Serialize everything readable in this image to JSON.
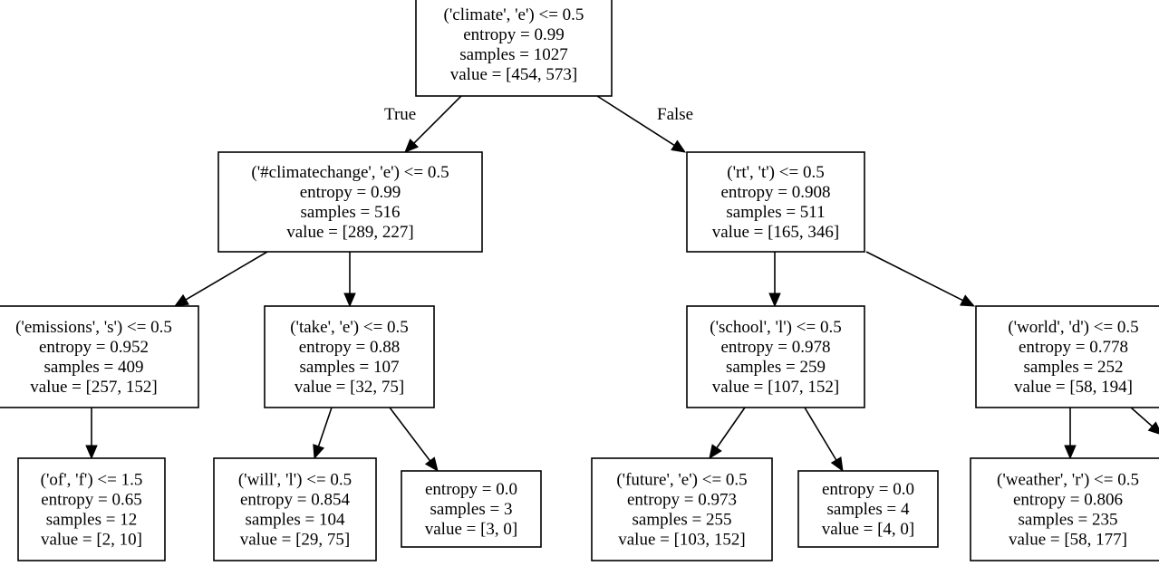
{
  "tree": {
    "nodes": [
      {
        "id": "n0",
        "lines": [
          "('climate', 'e') <= 0.5",
          "entropy = 0.99",
          "samples = 1027",
          "value = [454, 573]"
        ]
      },
      {
        "id": "n1",
        "lines": [
          "('#climatechange', 'e') <= 0.5",
          "entropy = 0.99",
          "samples = 516",
          "value = [289, 227]"
        ]
      },
      {
        "id": "n2",
        "lines": [
          "('rt', 't') <= 0.5",
          "entropy = 0.908",
          "samples = 511",
          "value = [165, 346]"
        ]
      },
      {
        "id": "n3",
        "lines": [
          "('emissions', 's') <= 0.5",
          "entropy = 0.952",
          "samples = 409",
          "value = [257, 152]"
        ]
      },
      {
        "id": "n4",
        "lines": [
          "('take', 'e') <= 0.5",
          "entropy = 0.88",
          "samples = 107",
          "value = [32, 75]"
        ]
      },
      {
        "id": "n5",
        "lines": [
          "('school', 'l') <= 0.5",
          "entropy = 0.978",
          "samples = 259",
          "value = [107, 152]"
        ]
      },
      {
        "id": "n6",
        "lines": [
          "('world', 'd') <= 0.5",
          "entropy = 0.778",
          "samples = 252",
          "value = [58, 194]"
        ]
      },
      {
        "id": "n7",
        "lines": [
          "('of', 'f') <= 1.5",
          "entropy = 0.65",
          "samples = 12",
          "value = [2, 10]"
        ]
      },
      {
        "id": "n8",
        "lines": [
          "('will', 'l') <= 0.5",
          "entropy = 0.854",
          "samples = 104",
          "value = [29, 75]"
        ]
      },
      {
        "id": "n9",
        "lines": [
          "entropy = 0.0",
          "samples = 3",
          "value = [3, 0]"
        ]
      },
      {
        "id": "n10",
        "lines": [
          "('future', 'e') <= 0.5",
          "entropy = 0.973",
          "samples = 255",
          "value = [103, 152]"
        ]
      },
      {
        "id": "n11",
        "lines": [
          "entropy = 0.0",
          "samples = 4",
          "value = [4, 0]"
        ]
      },
      {
        "id": "n12",
        "lines": [
          "('weather', 'r') <= 0.5",
          "entropy = 0.806",
          "samples = 235",
          "value = [58, 177]"
        ]
      }
    ],
    "edges": [
      {
        "from": "n0",
        "to": "n1",
        "label": "True"
      },
      {
        "from": "n0",
        "to": "n2",
        "label": "False"
      },
      {
        "from": "n1",
        "to": "n3",
        "label": ""
      },
      {
        "from": "n1",
        "to": "n4",
        "label": ""
      },
      {
        "from": "n2",
        "to": "n5",
        "label": ""
      },
      {
        "from": "n2",
        "to": "n6",
        "label": ""
      },
      {
        "from": "n3",
        "to": "n7",
        "label": ""
      },
      {
        "from": "n4",
        "to": "n8",
        "label": ""
      },
      {
        "from": "n4",
        "to": "n9",
        "label": ""
      },
      {
        "from": "n5",
        "to": "n10",
        "label": ""
      },
      {
        "from": "n5",
        "to": "n11",
        "label": ""
      },
      {
        "from": "n6",
        "to": "n12",
        "label": ""
      },
      {
        "from": "n6",
        "to": "",
        "label": ""
      }
    ]
  }
}
